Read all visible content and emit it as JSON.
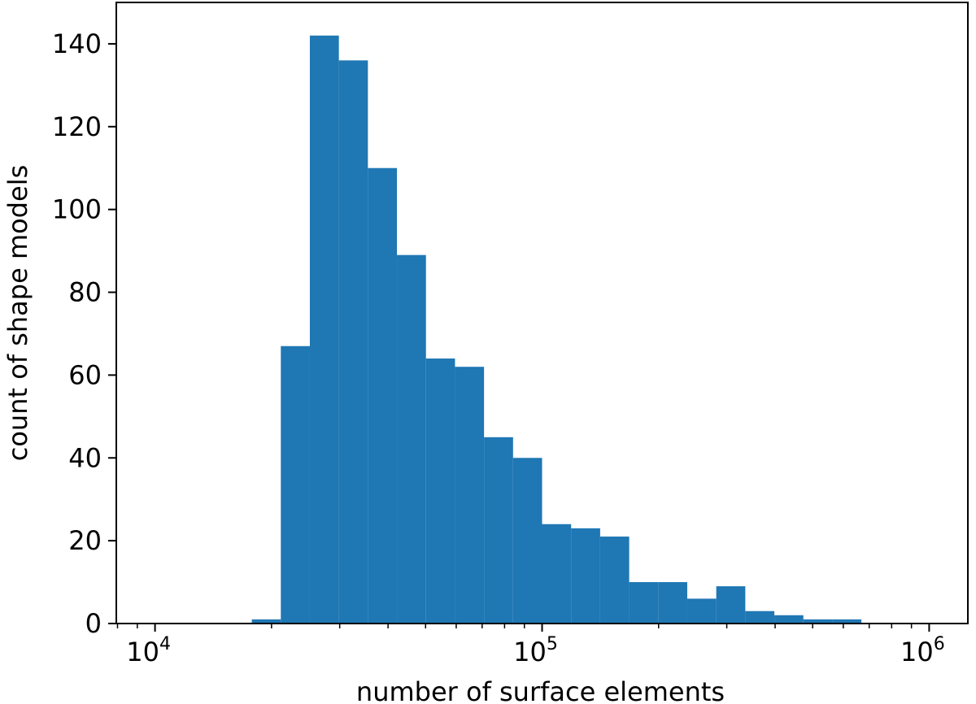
{
  "chart_data": {
    "type": "bar",
    "subtype": "histogram",
    "xscale": "log",
    "xlabel": "number of surface elements",
    "ylabel": "count of shape models",
    "xlim": [
      7943,
      1258925
    ],
    "ylim": [
      0,
      150
    ],
    "color": "#1f77b4",
    "grid": false,
    "x_ticks": [
      {
        "base": "10",
        "exp": "4",
        "value": 10000
      },
      {
        "base": "10",
        "exp": "5",
        "value": 100000
      },
      {
        "base": "10",
        "exp": "6",
        "value": 1000000
      }
    ],
    "y_ticks": [
      "0",
      "20",
      "40",
      "60",
      "80",
      "100",
      "120",
      "140"
    ],
    "bin_edges": [
      17783,
      21135,
      25119,
      29854,
      35481,
      42170,
      50119,
      59566,
      70795,
      84140,
      100000,
      118850,
      141254,
      167880,
      199526,
      237137,
      281838,
      334965,
      398107,
      473151,
      562341,
      668344,
      794328,
      944061
    ],
    "values": [
      1,
      67,
      142,
      136,
      110,
      89,
      64,
      62,
      45,
      40,
      24,
      23,
      21,
      10,
      10,
      6,
      9,
      3,
      2,
      1,
      1,
      0,
      0,
      1
    ]
  }
}
